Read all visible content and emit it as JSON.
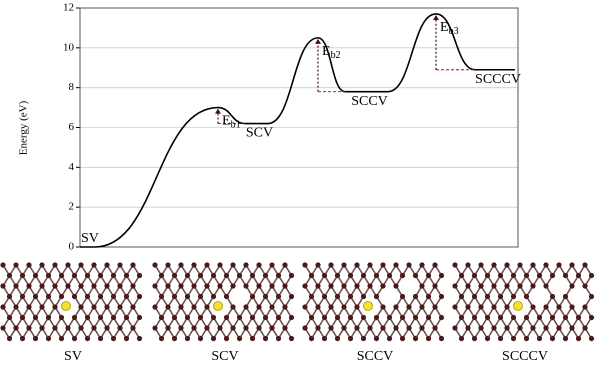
{
  "chart_data": {
    "type": "energy-profile",
    "y_label": "Energy (eV)",
    "categories": [
      "SV",
      null,
      "SCV",
      null,
      "SCCV",
      null,
      "SCCCV"
    ],
    "values": [
      0,
      7.0,
      6.2,
      10.5,
      7.8,
      11.7,
      8.9
    ],
    "barrier_labels": [
      "Eb1",
      "Eb2",
      "Eb3"
    ],
    "ylim": [
      0,
      12
    ],
    "yticks": [
      0,
      2,
      4,
      6,
      8,
      10,
      12
    ],
    "grid": true,
    "color": "#000000",
    "barrier_color": "#cc0000",
    "structures": [
      "SV",
      "SCV",
      "SCCV",
      "SCCCV"
    ]
  }
}
